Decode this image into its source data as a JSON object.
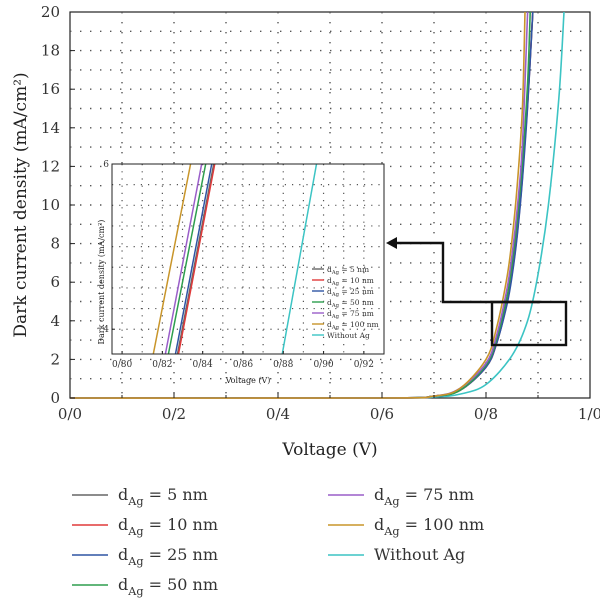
{
  "chart_data": {
    "type": "line",
    "xlabel": "Voltage (V)",
    "ylabel": "Dark current density (mA/cm²)",
    "xlim": [
      0.0,
      1.0
    ],
    "ylim": [
      0,
      20
    ],
    "x_ticks": [
      "0/0",
      "0/2",
      "0/4",
      "0/6",
      "0/8",
      "1/0"
    ],
    "y_ticks": [
      "0",
      "2",
      "4",
      "6",
      "8",
      "10",
      "12",
      "14",
      "16",
      "18",
      "20"
    ],
    "grid": true,
    "legend_position": "bottom",
    "series": [
      {
        "name_main": "d",
        "name_sub": "Ag",
        "name_rest": " = 5 nm",
        "color": "#666666",
        "x": [
          0.0,
          0.6,
          0.7,
          0.75,
          0.8,
          0.82,
          0.84,
          0.85,
          0.86,
          0.87,
          0.88,
          0.89
        ],
        "y": [
          0,
          0,
          0.1,
          0.4,
          1.6,
          2.8,
          4.9,
          6.5,
          8.6,
          11.5,
          15.3,
          20
        ]
      },
      {
        "name_main": "d",
        "name_sub": "Ag",
        "name_rest": " = 10 nm",
        "color": "#e03a3a",
        "x": [
          0.0,
          0.6,
          0.7,
          0.75,
          0.8,
          0.82,
          0.84,
          0.85,
          0.86,
          0.87,
          0.88,
          0.89
        ],
        "y": [
          0,
          0,
          0.1,
          0.4,
          1.6,
          2.8,
          4.9,
          6.4,
          8.5,
          11.4,
          15.2,
          20
        ]
      },
      {
        "name_main": "d",
        "name_sub": "Ag",
        "name_rest": " = 25 nm",
        "color": "#2f55a4",
        "x": [
          0.0,
          0.6,
          0.7,
          0.75,
          0.8,
          0.82,
          0.84,
          0.85,
          0.86,
          0.87,
          0.88,
          0.89
        ],
        "y": [
          0,
          0,
          0.1,
          0.4,
          1.6,
          2.8,
          4.8,
          6.3,
          8.4,
          11.3,
          15.1,
          20
        ]
      },
      {
        "name_main": "d",
        "name_sub": "Ag",
        "name_rest": " = 50 nm",
        "color": "#2e9e4e",
        "x": [
          0.0,
          0.6,
          0.7,
          0.75,
          0.8,
          0.82,
          0.84,
          0.85,
          0.86,
          0.87,
          0.88,
          0.885
        ],
        "y": [
          0,
          0,
          0.1,
          0.4,
          1.7,
          3.0,
          5.2,
          6.9,
          9.2,
          12.2,
          16.3,
          20
        ]
      },
      {
        "name_main": "d",
        "name_sub": "Ag",
        "name_rest": " = 75 nm",
        "color": "#9a5ec9",
        "x": [
          0.0,
          0.6,
          0.7,
          0.75,
          0.8,
          0.82,
          0.84,
          0.85,
          0.86,
          0.87,
          0.88
        ],
        "y": [
          0,
          0,
          0.1,
          0.5,
          1.8,
          3.2,
          5.6,
          7.4,
          9.8,
          13.1,
          20
        ]
      },
      {
        "name_main": "d",
        "name_sub": "Ag",
        "name_rest": " = 100 nm",
        "color": "#c8952a",
        "x": [
          0.0,
          0.6,
          0.7,
          0.75,
          0.8,
          0.82,
          0.84,
          0.85,
          0.86,
          0.87,
          0.875
        ],
        "y": [
          0,
          0,
          0.1,
          0.5,
          2.0,
          3.6,
          6.2,
          8.2,
          11.0,
          15.0,
          20
        ]
      },
      {
        "name_main": "Without Ag",
        "name_sub": "",
        "name_rest": "",
        "color": "#3cc4c4",
        "x": [
          0.0,
          0.6,
          0.7,
          0.75,
          0.8,
          0.85,
          0.88,
          0.9,
          0.92,
          0.94,
          0.95
        ],
        "y": [
          0,
          0,
          0.05,
          0.2,
          0.7,
          2.2,
          4.0,
          6.4,
          10.0,
          15.5,
          20
        ]
      }
    ],
    "inset": {
      "xlabel": "Voltage (V)",
      "ylabel": "Dark current density (mA/cm²)",
      "xlim": [
        0.795,
        0.93
      ],
      "ylim": [
        3.7,
        6.0
      ],
      "x_ticks": [
        "0/80",
        "0/82",
        "0/84",
        "0/86",
        "0/88",
        "0/90",
        "0/92"
      ],
      "y_ticks": [
        "4",
        "6"
      ],
      "lines": [
        {
          "color": "#666666",
          "x": [
            0.8275,
            0.8455
          ]
        },
        {
          "color": "#e03a3a",
          "x": [
            0.828,
            0.846
          ]
        },
        {
          "color": "#2f55a4",
          "x": [
            0.8265,
            0.8445
          ]
        },
        {
          "color": "#2e9e4e",
          "x": [
            0.823,
            0.8415
          ]
        },
        {
          "color": "#9a5ec9",
          "x": [
            0.8215,
            0.8395
          ]
        },
        {
          "color": "#c8952a",
          "x": [
            0.8155,
            0.834
          ]
        },
        {
          "color": "#3cc4c4",
          "x": [
            0.8795,
            0.8965
          ]
        }
      ]
    }
  }
}
